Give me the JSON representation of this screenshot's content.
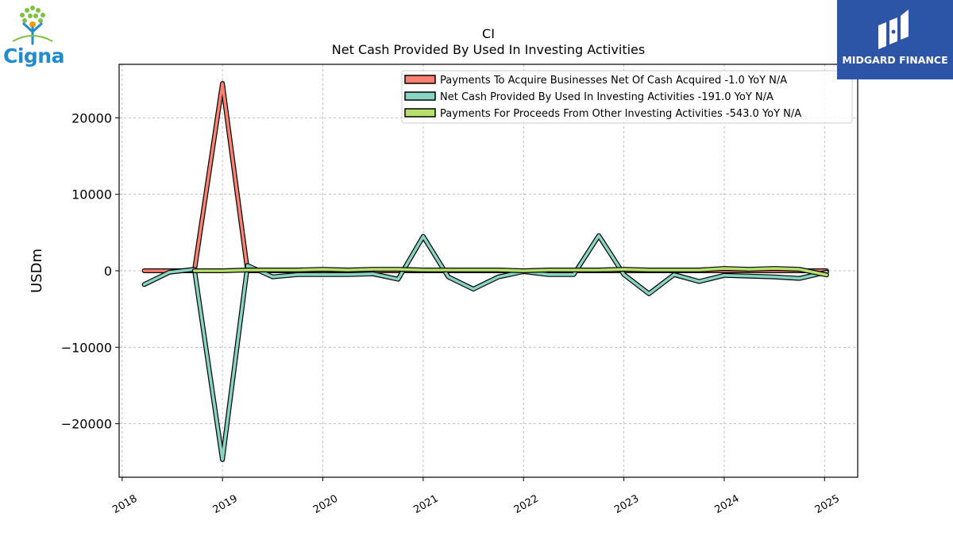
{
  "logos": {
    "left_brand": "Cigna",
    "right_brand": "MIDGARD FINANCE",
    "left_icon": "tree-figure-icon",
    "right_icon": "m-monogram-icon"
  },
  "chart_data": {
    "type": "line",
    "title_line1": "CI",
    "title_line2": "Net Cash Provided By Used In Investing Activities",
    "ylabel": "USDm",
    "xlabel": "",
    "xlim": [
      2017.97,
      2025.33
    ],
    "ylim": [
      -27000,
      27000
    ],
    "x_ticks": [
      2018,
      2019,
      2020,
      2021,
      2022,
      2023,
      2024,
      2025
    ],
    "x_tick_labels": [
      "2018",
      "2019",
      "2020",
      "2021",
      "2022",
      "2023",
      "2024",
      "2025"
    ],
    "y_ticks": [
      -20000,
      -10000,
      0,
      10000,
      20000
    ],
    "y_tick_labels": [
      "−20000",
      "−10000",
      "0",
      "10000",
      "20000"
    ],
    "grid": true,
    "legend_position": "top-right",
    "series": [
      {
        "name": "Payments To Acquire Businesses Net Of Cash Acquired  -1.0 YoY N/A",
        "color": "#fa8072",
        "x": [
          2018.22,
          2018.47,
          2018.72,
          2019.0,
          2019.25,
          2019.5,
          2019.75,
          2020.0,
          2020.25,
          2020.5,
          2020.75,
          2021.0,
          2021.25,
          2021.5,
          2021.75,
          2022.0,
          2022.25,
          2022.5,
          2022.75,
          2023.0,
          2023.25,
          2023.5,
          2023.75,
          2024.0,
          2024.25,
          2024.5,
          2024.75,
          2025.02
        ],
        "values": [
          0,
          0,
          0,
          24500,
          0,
          0,
          0,
          0,
          0,
          0,
          0,
          0,
          0,
          0,
          0,
          0,
          0,
          0,
          0,
          0,
          0,
          0,
          0,
          0,
          0,
          0,
          0,
          -1
        ]
      },
      {
        "name": "Net Cash Provided By Used In Investing Activities  -191.0 YoY N/A",
        "color": "#88d4c3",
        "x": [
          2018.22,
          2018.47,
          2018.72,
          2019.0,
          2019.25,
          2019.5,
          2019.75,
          2020.0,
          2020.25,
          2020.5,
          2020.75,
          2021.0,
          2021.25,
          2021.5,
          2021.75,
          2022.0,
          2022.25,
          2022.5,
          2022.75,
          2023.0,
          2023.25,
          2023.5,
          2023.75,
          2024.0,
          2024.25,
          2024.5,
          2024.75,
          2025.02
        ],
        "values": [
          -1800,
          -200,
          200,
          -24700,
          700,
          -800,
          -500,
          -500,
          -500,
          -400,
          -1100,
          4500,
          -800,
          -2400,
          -800,
          -100,
          -500,
          -500,
          4600,
          -500,
          -3000,
          -500,
          -1400,
          -600,
          -700,
          -800,
          -1000,
          -191
        ]
      },
      {
        "name": "Payments For Proceeds From Other Investing Activities  -543.0 YoY N/A",
        "color": "#b5e06e",
        "x": [
          2018.72,
          2019.0,
          2019.25,
          2019.5,
          2019.75,
          2020.0,
          2020.25,
          2020.5,
          2020.75,
          2021.0,
          2021.25,
          2021.5,
          2021.75,
          2022.0,
          2022.25,
          2022.5,
          2022.75,
          2023.0,
          2023.25,
          2023.5,
          2023.75,
          2024.0,
          2024.25,
          2024.5,
          2024.75,
          2025.02
        ],
        "values": [
          0,
          0,
          100,
          100,
          100,
          200,
          100,
          200,
          200,
          100,
          100,
          100,
          100,
          0,
          100,
          100,
          100,
          200,
          100,
          100,
          100,
          300,
          200,
          300,
          200,
          -543
        ]
      }
    ]
  }
}
